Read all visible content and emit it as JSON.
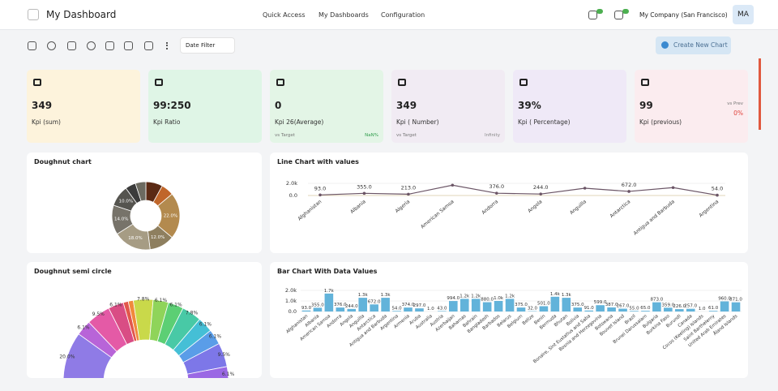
{
  "header": {
    "title": "My Dashboard",
    "nav": [
      "Quick Access",
      "My Dashboards",
      "Configuration"
    ],
    "company": "My Company (San Francisco)",
    "avatar": "MA"
  },
  "toolbar": {
    "filter": "Date Filter",
    "button": "Create New Chart"
  },
  "kpis": [
    {
      "value": "349",
      "label": "Kpi (sum)",
      "color": "#fdf3dc"
    },
    {
      "value": "99:250",
      "label": "Kpi Ratio",
      "color": "#dff5e6"
    },
    {
      "value": "0",
      "label": "Kpi 26(Average)",
      "color": "#e3f5e6",
      "target": {
        "caption": "vs Target",
        "value": "NaN%"
      }
    },
    {
      "value": "349",
      "label": "Kpi ( Number)",
      "color": "#f1ebf3",
      "target": {
        "caption": "vs Target",
        "value": "Infinity"
      }
    },
    {
      "value": "39%",
      "label": "Kpi ( Percentage)",
      "color": "#efe9f7"
    },
    {
      "value": "99",
      "label": "Kpi (previous)",
      "color": "#fbecef",
      "previous": {
        "caption": "vs Prev",
        "value": "0%"
      }
    }
  ],
  "charts": [
    {
      "type": "doughnut",
      "title": "Doughnut chart",
      "circumference": 360,
      "values": [
        8,
        6,
        22,
        12,
        18,
        14,
        10,
        5,
        5
      ],
      "value_labels": [
        null,
        null,
        "22.0%",
        "12.0%",
        "18.0%",
        "14.0%",
        "10.0%",
        null,
        null
      ],
      "colors": [
        "#5b2a14",
        "#c0662a",
        "#b38a4e",
        "#8e7f5f",
        "#a69c84",
        "#77736a",
        "#55544f",
        "#3b3b3b",
        "#6c6a60"
      ]
    },
    {
      "type": "line",
      "title": "Line Chart with values",
      "color": "#6b5566",
      "categories": [
        "Afghanistan",
        "Albania",
        "Algeria",
        "American Samoa",
        "Andorra",
        "Angola",
        "Anguilla",
        "Antarctica",
        "Antigua and Barbuda",
        "Argentina"
      ],
      "values": [
        93,
        355,
        213,
        1700,
        376,
        244,
        1200,
        672,
        1300,
        54
      ],
      "value_labels": [
        "93.0",
        "355.0",
        "213.0",
        null,
        "376.0",
        "244.0",
        null,
        "672.0",
        null,
        "54.0"
      ],
      "ylim": [
        0,
        2000
      ],
      "yticks": [
        {
          "value": 0,
          "label": "0.0"
        },
        {
          "value": 2000,
          "label": "2.0k"
        }
      ]
    },
    {
      "type": "doughnut",
      "title": "Doughnut semi circle",
      "circumference": 180,
      "values": [
        20.0,
        6.1,
        9.5,
        6.1,
        2.0,
        2.0,
        7.8,
        6.1,
        6.1,
        7.8,
        6.1,
        6.1,
        9.5,
        6.1
      ],
      "value_labels": [
        "20.0%",
        "6.1%",
        "9.5%",
        "6.1%",
        null,
        null,
        "7.8%",
        "6.1%",
        "6.1%",
        "7.8%",
        "6.1%",
        "6.1%",
        "9.5%",
        "6.1%"
      ],
      "colors": [
        "#8f7be6",
        "#b864d8",
        "#e45aa6",
        "#d94d84",
        "#e2574c",
        "#f08a3c",
        "#c9d94a",
        "#8fd45a",
        "#5ccf74",
        "#48c9a6",
        "#45bfd6",
        "#5a9de8",
        "#7d77e8",
        "#9a68e4"
      ]
    },
    {
      "type": "bar",
      "title": "Bar Chart With Data Values",
      "color": "#62b3da",
      "categories": [
        "Afghanistan",
        "Albania",
        "American Samoa",
        "Andorra",
        "Angola",
        "Anguilla",
        "Antarctica",
        "Antigua and Barbuda",
        "Argentina",
        "Armenia",
        "Aruba",
        "Australia",
        "Austria",
        "Azerbaijan",
        "Bahamas",
        "Bahrain",
        "Bangladesh",
        "Barbados",
        "Belarus",
        "Belgium",
        "Belize",
        "Benin",
        "Bermuda",
        "Bhutan",
        "Bolivia",
        "Bonaire, Sint Eustatius and Saba",
        "Bosnia and Herzegovina",
        "Botswana",
        "Bouvet Island",
        "Brazil",
        "Brunei Darussalam",
        "Bulgaria",
        "Burkina Faso",
        "Burundi",
        "Canada",
        "Cocos (Keeling) Islands",
        "Saint Barthelemy",
        "United Arab Emirates",
        "Åland Islands"
      ],
      "values": [
        93,
        355,
        1700,
        376,
        244,
        1300,
        672,
        1300,
        54,
        374,
        297,
        1,
        43,
        994,
        1200,
        1200,
        880,
        1000,
        1200,
        375,
        32,
        501,
        1400,
        1300,
        375,
        91,
        599,
        387,
        267,
        55,
        65,
        873,
        359,
        226,
        257,
        1,
        61,
        960,
        871
      ],
      "value_labels": [
        "93.0",
        "355.0",
        "1.7k",
        "376.0",
        "244.0",
        "1.3k",
        "672.0",
        "1.3k",
        "54.0",
        "374.0",
        "297.0",
        "1.0",
        "43.0",
        "994.0",
        "1.2k",
        "1.2k",
        "880.0",
        "1.0k",
        "1.2k",
        "375.0",
        "32.0",
        "501.0",
        "1.4k",
        "1.3k",
        "375.0",
        "91.0",
        "599.0",
        "387.0",
        "267.0",
        "55.0",
        "65.0",
        "873.0",
        "359.0",
        "226.0",
        "257.0",
        "1.0",
        "61.0",
        "960.0",
        "871.0"
      ],
      "ylim": [
        0,
        2000
      ],
      "yticks": [
        {
          "value": 0,
          "label": "0.0"
        },
        {
          "value": 1000,
          "label": "1.0k"
        },
        {
          "value": 2000,
          "label": "2.0k"
        }
      ]
    }
  ]
}
